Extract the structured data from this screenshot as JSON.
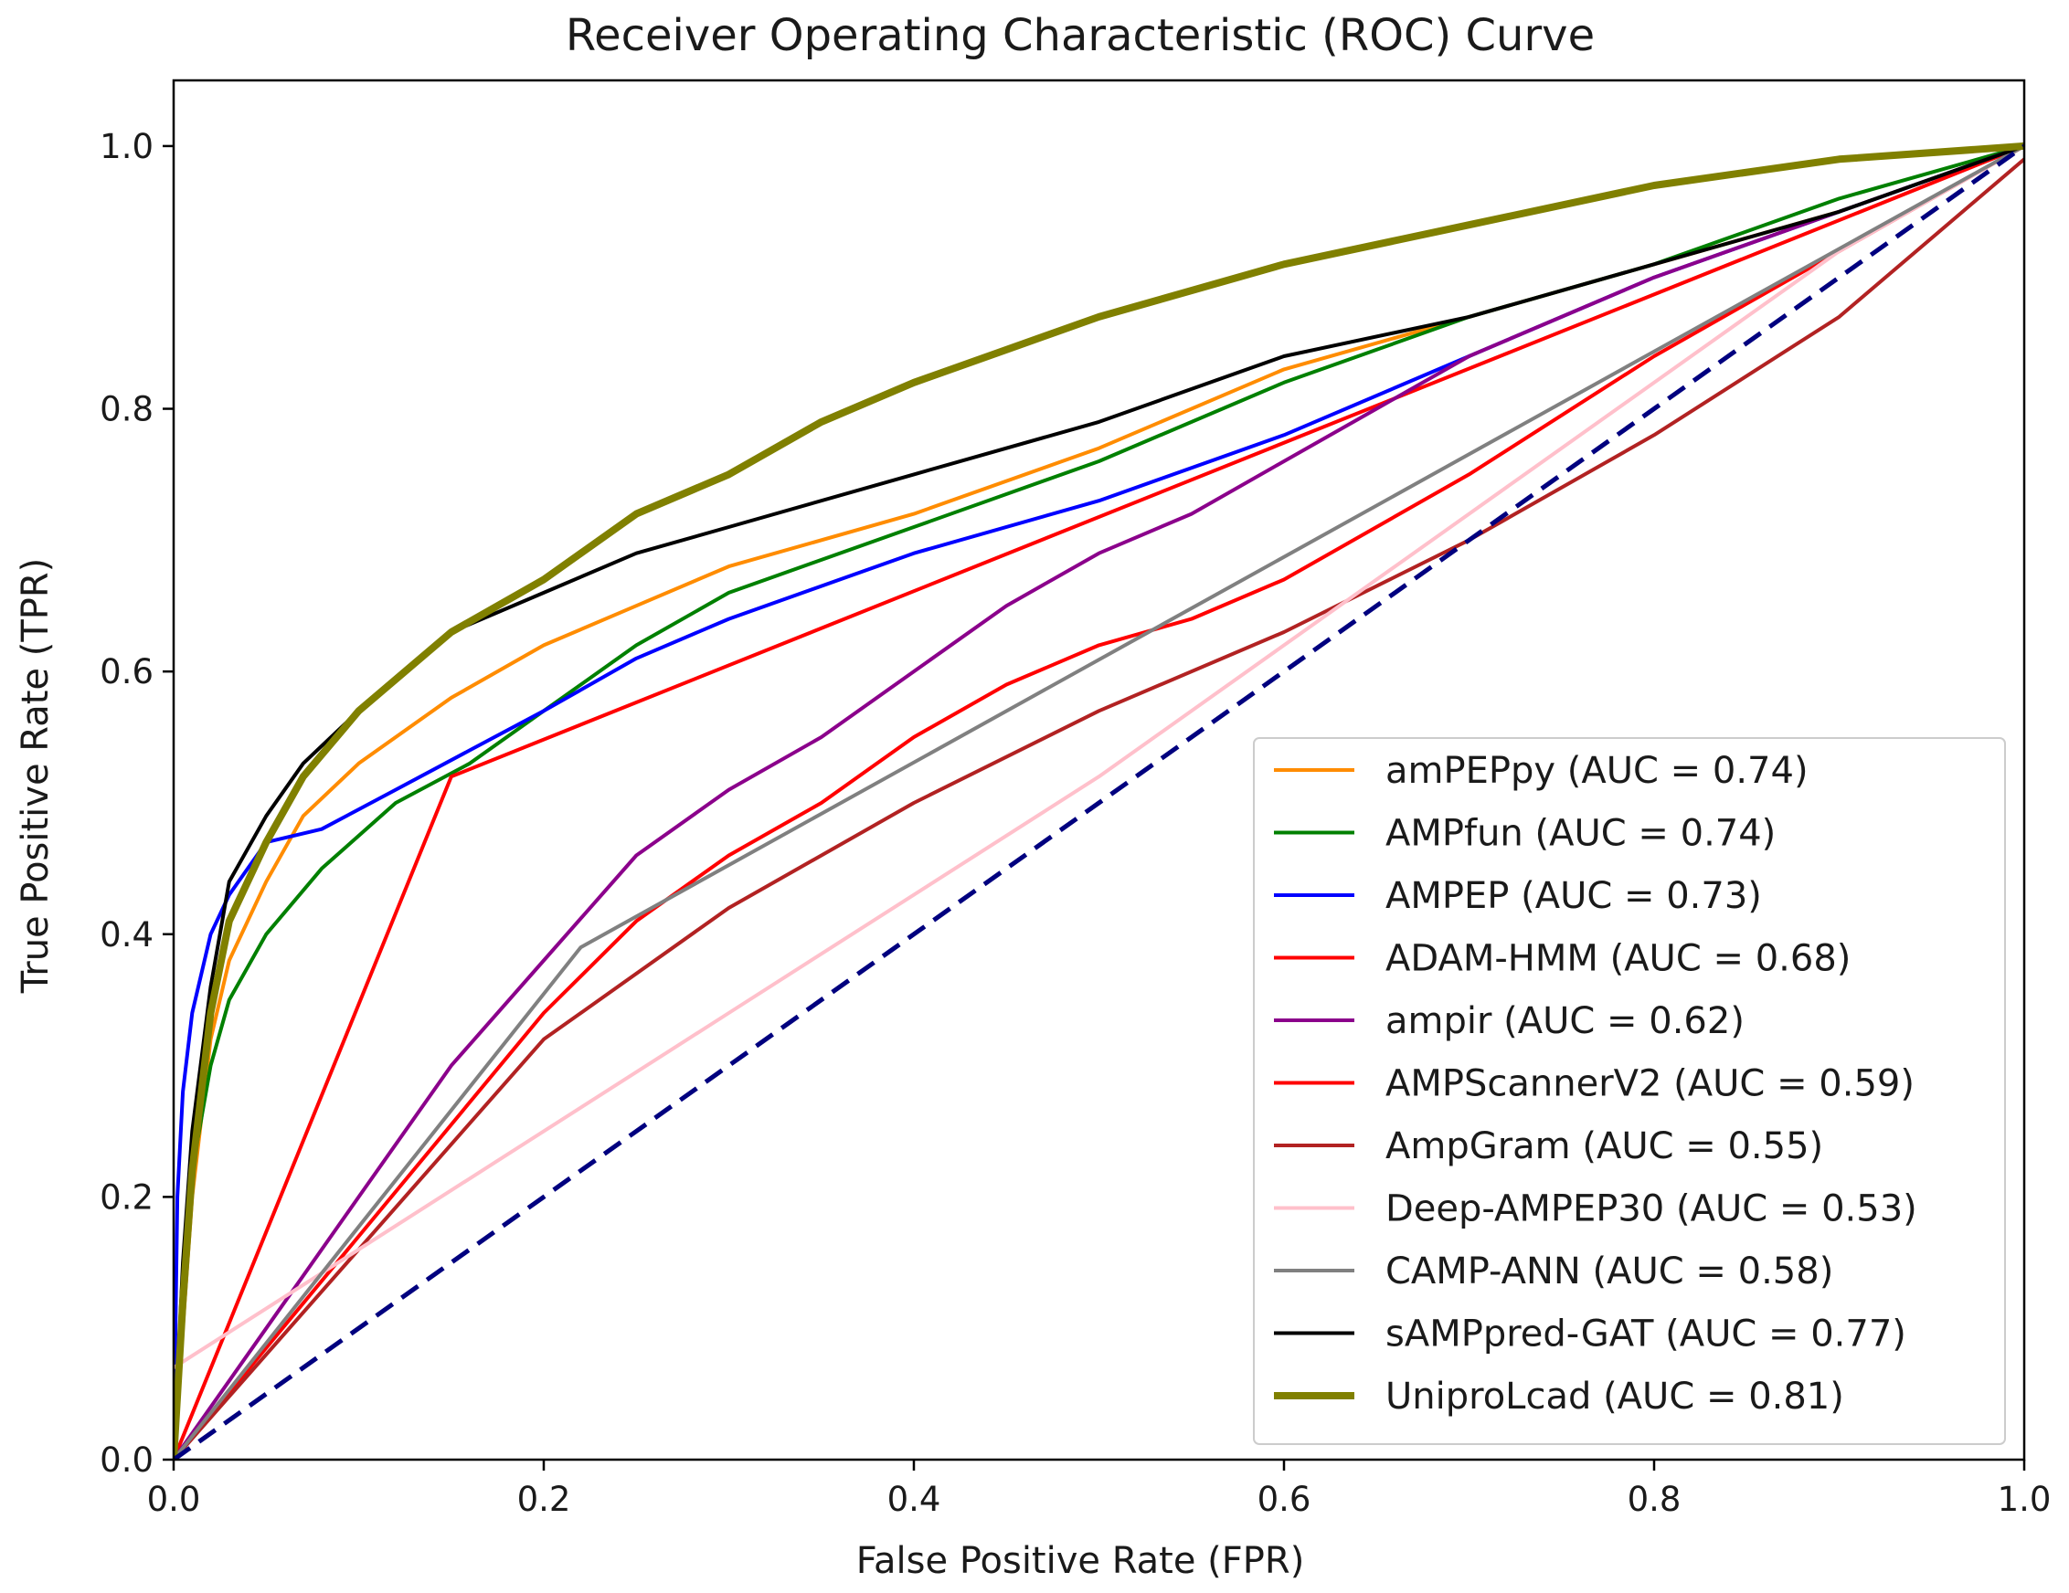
{
  "chart_data": {
    "type": "line",
    "title": "Receiver Operating Characteristic (ROC) Curve",
    "xlabel": "False Positive Rate (FPR)",
    "ylabel": "True Positive Rate (TPR)",
    "xlim": [
      0,
      1
    ],
    "ylim": [
      0,
      1.05
    ],
    "xticks": [
      0.0,
      0.2,
      0.4,
      0.6,
      0.8,
      1.0
    ],
    "yticks": [
      0.0,
      0.2,
      0.4,
      0.6,
      0.8,
      1.0
    ],
    "xtick_labels": [
      "0.0",
      "0.2",
      "0.4",
      "0.6",
      "0.8",
      "1.0"
    ],
    "ytick_labels": [
      "0.0",
      "0.2",
      "0.4",
      "0.6",
      "0.8",
      "1.0"
    ],
    "grid": false,
    "legend_position": "lower-right",
    "reference_line": {
      "name": "chance",
      "color": "#00007f",
      "dashed": true,
      "x": [
        0,
        1
      ],
      "y": [
        0,
        1
      ]
    },
    "series": [
      {
        "name": "amPEPpy",
        "label": "amPEPpy (AUC = 0.74)",
        "auc": 0.74,
        "color": "#ff8c00",
        "width": 4,
        "x": [
          0,
          0.005,
          0.01,
          0.02,
          0.03,
          0.05,
          0.07,
          0.1,
          0.15,
          0.2,
          0.25,
          0.3,
          0.4,
          0.5,
          0.6,
          0.7,
          0.8,
          0.9,
          1.0
        ],
        "y": [
          0,
          0.1,
          0.2,
          0.32,
          0.38,
          0.44,
          0.49,
          0.53,
          0.58,
          0.62,
          0.65,
          0.68,
          0.72,
          0.77,
          0.83,
          0.87,
          0.91,
          0.95,
          1.0
        ]
      },
      {
        "name": "AMPfun",
        "label": "AMPfun (AUC = 0.74)",
        "auc": 0.74,
        "color": "#008000",
        "width": 4,
        "x": [
          0,
          0.005,
          0.01,
          0.02,
          0.03,
          0.05,
          0.08,
          0.12,
          0.16,
          0.2,
          0.25,
          0.3,
          0.4,
          0.5,
          0.6,
          0.7,
          0.8,
          0.9,
          1.0
        ],
        "y": [
          0,
          0.12,
          0.22,
          0.3,
          0.35,
          0.4,
          0.45,
          0.5,
          0.53,
          0.57,
          0.62,
          0.66,
          0.71,
          0.76,
          0.82,
          0.87,
          0.91,
          0.96,
          1.0
        ]
      },
      {
        "name": "AMPEP",
        "label": "AMPEP (AUC = 0.73)",
        "auc": 0.73,
        "color": "#0000ff",
        "width": 4,
        "x": [
          0,
          0.002,
          0.005,
          0.01,
          0.02,
          0.03,
          0.05,
          0.08,
          0.12,
          0.16,
          0.2,
          0.25,
          0.3,
          0.4,
          0.5,
          0.6,
          0.7,
          0.8,
          0.9,
          1.0
        ],
        "y": [
          0,
          0.2,
          0.28,
          0.34,
          0.4,
          0.43,
          0.47,
          0.48,
          0.51,
          0.54,
          0.57,
          0.61,
          0.64,
          0.69,
          0.73,
          0.78,
          0.84,
          0.9,
          0.95,
          1.0
        ]
      },
      {
        "name": "ADAM-HMM",
        "label": "ADAM-HMM (AUC = 0.68)",
        "auc": 0.68,
        "color": "#ff0000",
        "width": 4,
        "x": [
          0,
          0.15,
          1.0
        ],
        "y": [
          0,
          0.52,
          1.0
        ]
      },
      {
        "name": "ampir",
        "label": "ampir (AUC = 0.62)",
        "auc": 0.62,
        "color": "#8b008b",
        "width": 4,
        "x": [
          0,
          0.05,
          0.1,
          0.15,
          0.2,
          0.25,
          0.3,
          0.35,
          0.4,
          0.45,
          0.5,
          0.55,
          0.6,
          0.65,
          0.7,
          0.8,
          0.9,
          1.0
        ],
        "y": [
          0,
          0.1,
          0.2,
          0.3,
          0.38,
          0.46,
          0.51,
          0.55,
          0.6,
          0.65,
          0.69,
          0.72,
          0.76,
          0.8,
          0.84,
          0.9,
          0.95,
          1.0
        ]
      },
      {
        "name": "AMPScannerV2",
        "label": "AMPScannerV2 (AUC = 0.59)",
        "auc": 0.59,
        "color": "#ff0000",
        "width": 4,
        "x": [
          0,
          0.1,
          0.2,
          0.25,
          0.3,
          0.35,
          0.4,
          0.45,
          0.5,
          0.55,
          0.6,
          0.7,
          0.8,
          0.9,
          1.0
        ],
        "y": [
          0,
          0.17,
          0.34,
          0.41,
          0.46,
          0.5,
          0.55,
          0.59,
          0.62,
          0.64,
          0.67,
          0.75,
          0.84,
          0.92,
          1.0
        ]
      },
      {
        "name": "AmpGram",
        "label": "AmpGram (AUC = 0.55)",
        "auc": 0.55,
        "color": "#b22222",
        "width": 4,
        "x": [
          0,
          0.1,
          0.2,
          0.3,
          0.4,
          0.5,
          0.6,
          0.7,
          0.8,
          0.9,
          1.0
        ],
        "y": [
          0,
          0.16,
          0.32,
          0.42,
          0.5,
          0.57,
          0.63,
          0.7,
          0.78,
          0.87,
          0.99
        ]
      },
      {
        "name": "Deep-AMPEP30",
        "label": "Deep-AMPEP30 (AUC = 0.53)",
        "auc": 0.53,
        "color": "#ffc0cb",
        "width": 4,
        "x": [
          0,
          0.1,
          0.3,
          0.5,
          0.7,
          0.9,
          1.0
        ],
        "y": [
          0.07,
          0.16,
          0.34,
          0.52,
          0.72,
          0.92,
          1.0
        ]
      },
      {
        "name": "CAMP-ANN",
        "label": "CAMP-ANN (AUC = 0.58)",
        "auc": 0.58,
        "color": "#808080",
        "width": 4,
        "x": [
          0,
          0.22,
          1.0
        ],
        "y": [
          0,
          0.39,
          1.0
        ]
      },
      {
        "name": "sAMPpred-GAT",
        "label": "sAMPpred-GAT (AUC = 0.77)",
        "auc": 0.77,
        "color": "#000000",
        "width": 4,
        "x": [
          0,
          0.005,
          0.01,
          0.02,
          0.03,
          0.05,
          0.07,
          0.1,
          0.15,
          0.2,
          0.25,
          0.3,
          0.4,
          0.5,
          0.6,
          0.7,
          0.8,
          0.9,
          1.0
        ],
        "y": [
          0,
          0.15,
          0.25,
          0.36,
          0.44,
          0.49,
          0.53,
          0.57,
          0.63,
          0.66,
          0.69,
          0.71,
          0.75,
          0.79,
          0.84,
          0.87,
          0.91,
          0.95,
          1.0
        ]
      },
      {
        "name": "UniproLcad",
        "label": "UniproLcad (AUC = 0.81)",
        "auc": 0.81,
        "color": "#808000",
        "width": 8,
        "x": [
          0,
          0.005,
          0.01,
          0.02,
          0.03,
          0.05,
          0.07,
          0.1,
          0.15,
          0.2,
          0.25,
          0.3,
          0.35,
          0.4,
          0.5,
          0.6,
          0.7,
          0.8,
          0.9,
          1.0
        ],
        "y": [
          0,
          0.12,
          0.22,
          0.34,
          0.41,
          0.47,
          0.52,
          0.57,
          0.63,
          0.67,
          0.72,
          0.75,
          0.79,
          0.82,
          0.87,
          0.91,
          0.94,
          0.97,
          0.99,
          1.0
        ]
      }
    ]
  }
}
